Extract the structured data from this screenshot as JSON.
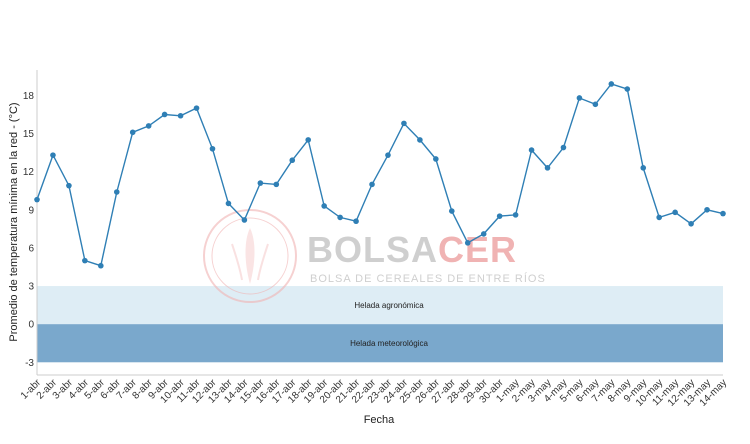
{
  "colors": {
    "line": "#2f7fb5",
    "frost_agronomic": "#deedf5",
    "frost_meteorological": "#7aa8cc",
    "watermark_gray": "#cfcfcf",
    "watermark_red": "#f0b3b3"
  },
  "watermark": {
    "title_a": "BOLSA",
    "title_b": "CER",
    "subtitle": "BOLSA DE CEREALES DE ENTRE RÍOS"
  },
  "chart_data": {
    "type": "line",
    "xlabel": "Fecha",
    "ylabel": "Promedio de temperatura mínima en la red - (°C)",
    "ylim": [
      -4,
      20
    ],
    "yticks": [
      -3,
      0,
      3,
      6,
      9,
      12,
      15,
      18
    ],
    "grid": false,
    "categories": [
      "1-abr",
      "2-abr",
      "3-abr",
      "4-abr",
      "5-abr",
      "6-abr",
      "7-abr",
      "8-abr",
      "9-abr",
      "10-abr",
      "11-abr",
      "12-abr",
      "13-abr",
      "14-abr",
      "15-abr",
      "16-abr",
      "17-abr",
      "18-abr",
      "19-abr",
      "20-abr",
      "21-abr",
      "22-abr",
      "23-abr",
      "24-abr",
      "25-abr",
      "26-abr",
      "27-abr",
      "28-abr",
      "29-abr",
      "30-abr",
      "1-may",
      "2-may",
      "3-may",
      "4-may",
      "5-may",
      "6-may",
      "7-may",
      "8-may",
      "9-may",
      "10-may",
      "11-may",
      "12-may",
      "13-may",
      "14-may"
    ],
    "series": [
      {
        "values": [
          9.8,
          13.3,
          10.9,
          5.0,
          4.6,
          10.4,
          15.1,
          15.6,
          16.5,
          16.4,
          17.0,
          13.8,
          9.5,
          8.2,
          11.1,
          11.0,
          12.9,
          14.5,
          9.3,
          8.4,
          8.1,
          11.0,
          13.3,
          15.8,
          14.5,
          13.0,
          8.9,
          6.4,
          7.1,
          8.5,
          8.6,
          13.7,
          12.3,
          13.9,
          17.8,
          17.3,
          18.9,
          18.5,
          12.3,
          8.4,
          8.8,
          7.9,
          9.0,
          8.7
        ]
      }
    ],
    "bands": [
      {
        "label": "Helada agronómica",
        "from": 0,
        "to": 3
      },
      {
        "label": "Helada meteorológica",
        "from": -3,
        "to": 0
      }
    ]
  }
}
